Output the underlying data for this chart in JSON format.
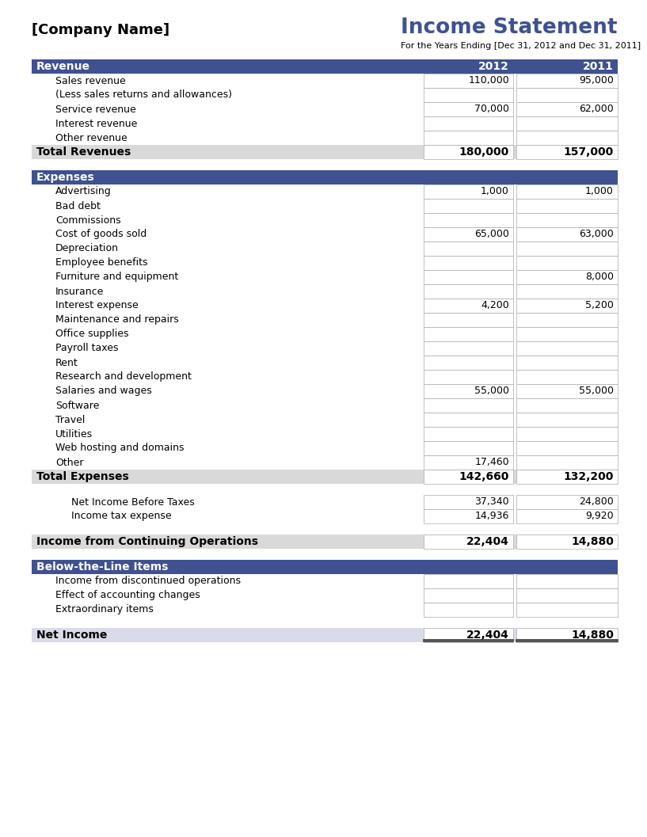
{
  "title": "Income Statement",
  "company": "[Company Name]",
  "subtitle": "For the Years Ending [Dec 31, 2012 and Dec 31, 2011]",
  "col_2012": "2012",
  "col_2011": "2011",
  "header_bg": "#3F5190",
  "header_text": "#FFFFFF",
  "total_bg": "#D9D9D9",
  "net_income_bg": "#D9DCE8",
  "white_bg": "#FFFFFF",
  "border_color": "#AAAAAA",
  "sections": [
    {
      "type": "header",
      "label": "Revenue",
      "col2012": "2012",
      "col2011": "2011"
    },
    {
      "type": "item",
      "label": "Sales revenue",
      "col2012": "110,000",
      "col2011": "95,000"
    },
    {
      "type": "item",
      "label": "(Less sales returns and allowances)",
      "col2012": "",
      "col2011": ""
    },
    {
      "type": "item",
      "label": "Service revenue",
      "col2012": "70,000",
      "col2011": "62,000"
    },
    {
      "type": "item",
      "label": "Interest revenue",
      "col2012": "",
      "col2011": ""
    },
    {
      "type": "item",
      "label": "Other revenue",
      "col2012": "",
      "col2011": ""
    },
    {
      "type": "total",
      "label": "Total Revenues",
      "col2012": "180,000",
      "col2011": "157,000"
    },
    {
      "type": "spacer"
    },
    {
      "type": "header",
      "label": "Expenses",
      "col2012": "",
      "col2011": ""
    },
    {
      "type": "item",
      "label": "Advertising",
      "col2012": "1,000",
      "col2011": "1,000"
    },
    {
      "type": "item",
      "label": "Bad debt",
      "col2012": "",
      "col2011": ""
    },
    {
      "type": "item",
      "label": "Commissions",
      "col2012": "",
      "col2011": ""
    },
    {
      "type": "item",
      "label": "Cost of goods sold",
      "col2012": "65,000",
      "col2011": "63,000"
    },
    {
      "type": "item",
      "label": "Depreciation",
      "col2012": "",
      "col2011": ""
    },
    {
      "type": "item",
      "label": "Employee benefits",
      "col2012": "",
      "col2011": ""
    },
    {
      "type": "item",
      "label": "Furniture and equipment",
      "col2012": "",
      "col2011": "8,000"
    },
    {
      "type": "item",
      "label": "Insurance",
      "col2012": "",
      "col2011": ""
    },
    {
      "type": "item",
      "label": "Interest expense",
      "col2012": "4,200",
      "col2011": "5,200"
    },
    {
      "type": "item",
      "label": "Maintenance and repairs",
      "col2012": "",
      "col2011": ""
    },
    {
      "type": "item",
      "label": "Office supplies",
      "col2012": "",
      "col2011": ""
    },
    {
      "type": "item",
      "label": "Payroll taxes",
      "col2012": "",
      "col2011": ""
    },
    {
      "type": "item",
      "label": "Rent",
      "col2012": "",
      "col2011": ""
    },
    {
      "type": "item",
      "label": "Research and development",
      "col2012": "",
      "col2011": ""
    },
    {
      "type": "item",
      "label": "Salaries and wages",
      "col2012": "55,000",
      "col2011": "55,000"
    },
    {
      "type": "item",
      "label": "Software",
      "col2012": "",
      "col2011": ""
    },
    {
      "type": "item",
      "label": "Travel",
      "col2012": "",
      "col2011": ""
    },
    {
      "type": "item",
      "label": "Utilities",
      "col2012": "",
      "col2011": ""
    },
    {
      "type": "item",
      "label": "Web hosting and domains",
      "col2012": "",
      "col2011": ""
    },
    {
      "type": "item",
      "label": "Other",
      "col2012": "17,460",
      "col2011": ""
    },
    {
      "type": "total",
      "label": "Total Expenses",
      "col2012": "142,660",
      "col2011": "132,200"
    },
    {
      "type": "spacer"
    },
    {
      "type": "subitem",
      "label": "Net Income Before Taxes",
      "col2012": "37,340",
      "col2011": "24,800"
    },
    {
      "type": "subitem",
      "label": "Income tax expense",
      "col2012": "14,936",
      "col2011": "9,920"
    },
    {
      "type": "spacer"
    },
    {
      "type": "income_ops",
      "label": "Income from Continuing Operations",
      "col2012": "22,404",
      "col2011": "14,880"
    },
    {
      "type": "spacer"
    },
    {
      "type": "header",
      "label": "Below-the-Line Items",
      "col2012": "",
      "col2011": ""
    },
    {
      "type": "item",
      "label": "Income from discontinued operations",
      "col2012": "",
      "col2011": ""
    },
    {
      "type": "item",
      "label": "Effect of accounting changes",
      "col2012": "",
      "col2011": ""
    },
    {
      "type": "item",
      "label": "Extraordinary items",
      "col2012": "",
      "col2011": ""
    },
    {
      "type": "spacer"
    },
    {
      "type": "net_income",
      "label": "Net Income",
      "col2012": "22,404",
      "col2011": "14,880"
    }
  ]
}
